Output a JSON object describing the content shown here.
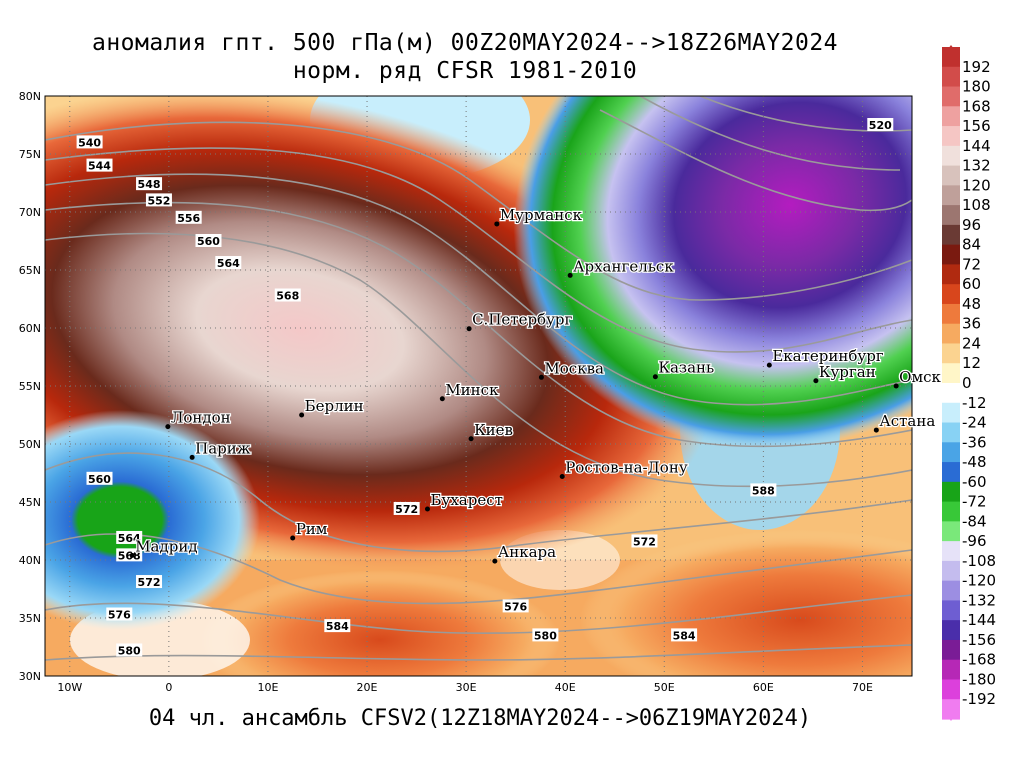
{
  "title_line1": "аномалия гпт. 500 гПа(м) 00Z20MAY2024-->18Z26MAY2024",
  "title_line2": "норм. ряд CFSR 1981-2010",
  "footer": "04 чл. ансамбль CFSV2(12Z18MAY2024-->06Z19MAY2024)",
  "lat_labels": [
    "80N",
    "75N",
    "70N",
    "65N",
    "60N",
    "55N",
    "50N",
    "45N",
    "40N",
    "35N",
    "30N"
  ],
  "lon_labels": [
    "10W",
    "0",
    "10E",
    "20E",
    "30E",
    "40E",
    "50E",
    "60E",
    "70E"
  ],
  "cities": [
    {
      "name": "Мурманск",
      "lon": 33.1,
      "lat": 68.97
    },
    {
      "name": "Архангельск",
      "lon": 40.5,
      "lat": 64.54
    },
    {
      "name": "С.Петербург",
      "lon": 30.3,
      "lat": 59.94
    },
    {
      "name": "Москва",
      "lon": 37.6,
      "lat": 55.75
    },
    {
      "name": "Минск",
      "lon": 27.6,
      "lat": 53.9
    },
    {
      "name": "Казань",
      "lon": 49.1,
      "lat": 55.8
    },
    {
      "name": "Екатеринбург",
      "lon": 60.6,
      "lat": 56.8
    },
    {
      "name": "Курган",
      "lon": 65.3,
      "lat": 55.45
    },
    {
      "name": "Омск",
      "lon": 73.4,
      "lat": 55.0
    },
    {
      "name": "Астана",
      "lon": 71.4,
      "lat": 51.2
    },
    {
      "name": "Берлин",
      "lon": 13.4,
      "lat": 52.5
    },
    {
      "name": "Лондон",
      "lon": -0.1,
      "lat": 51.5
    },
    {
      "name": "Париж",
      "lon": 2.35,
      "lat": 48.85
    },
    {
      "name": "Киев",
      "lon": 30.5,
      "lat": 50.45
    },
    {
      "name": "Ростов-на-Дону",
      "lon": 39.7,
      "lat": 47.2
    },
    {
      "name": "Бухарест",
      "lon": 26.1,
      "lat": 44.4
    },
    {
      "name": "Рим",
      "lon": 12.5,
      "lat": 41.9
    },
    {
      "name": "Мадрид",
      "lon": -3.7,
      "lat": 40.4
    },
    {
      "name": "Анкара",
      "lon": 32.9,
      "lat": 39.9
    }
  ],
  "contour_labels": [
    {
      "text": "540",
      "lon": -8.0,
      "lat": 76.0
    },
    {
      "text": "544",
      "lon": -7.0,
      "lat": 74.0
    },
    {
      "text": "548",
      "lon": -2.0,
      "lat": 72.4
    },
    {
      "text": "552",
      "lon": -1.0,
      "lat": 71.0
    },
    {
      "text": "556",
      "lon": 2.0,
      "lat": 69.5
    },
    {
      "text": "560",
      "lon": 4.0,
      "lat": 67.5
    },
    {
      "text": "564",
      "lon": 6.0,
      "lat": 65.6
    },
    {
      "text": "568",
      "lon": 12.0,
      "lat": 62.8
    },
    {
      "text": "520",
      "lon": 71.8,
      "lat": 77.5
    },
    {
      "text": "560",
      "lon": -7.0,
      "lat": 47.0
    },
    {
      "text": "564",
      "lon": -4.0,
      "lat": 41.9
    },
    {
      "text": "568",
      "lon": -4.0,
      "lat": 40.4
    },
    {
      "text": "572",
      "lon": -2.0,
      "lat": 38.1
    },
    {
      "text": "576",
      "lon": -5.0,
      "lat": 35.3
    },
    {
      "text": "580",
      "lon": -4.0,
      "lat": 32.2
    },
    {
      "text": "572",
      "lon": 24.0,
      "lat": 44.4
    },
    {
      "text": "572",
      "lon": 48.0,
      "lat": 41.6
    },
    {
      "text": "576",
      "lon": 35.0,
      "lat": 36.0
    },
    {
      "text": "580",
      "lon": 38.0,
      "lat": 33.5
    },
    {
      "text": "584",
      "lon": 17.0,
      "lat": 34.3
    },
    {
      "text": "584",
      "lon": 52.0,
      "lat": 33.5
    },
    {
      "text": "588",
      "lon": 60.0,
      "lat": 46.0
    }
  ],
  "colorbar": {
    "labels": [
      "192",
      "180",
      "168",
      "156",
      "144",
      "132",
      "120",
      "108",
      "96",
      "84",
      "72",
      "60",
      "48",
      "36",
      "24",
      "12",
      "0",
      "-12",
      "-24",
      "-36",
      "-48",
      "-60",
      "-72",
      "-84",
      "-96",
      "-108",
      "-120",
      "-132",
      "-144",
      "-156",
      "-168",
      "-180",
      "-192"
    ],
    "colors": [
      "#c0302e",
      "#d24c4a",
      "#e06c6a",
      "#eea1a0",
      "#f5c6c4",
      "#f0e0dc",
      "#d8c2bc",
      "#bfa09a",
      "#9c7670",
      "#6a3a34",
      "#7a1a10",
      "#b02a10",
      "#d8461c",
      "#ee7a3c",
      "#f6aa60",
      "#fbd390",
      "#fff6c8",
      "#ffffff",
      "#c8eefc",
      "#88d2f4",
      "#4aa4e6",
      "#2a6cd4",
      "#18a418",
      "#38c838",
      "#7ae87a",
      "#e6e2f8",
      "#c4bcee",
      "#9c8ee2",
      "#6e5ed2",
      "#4a2eaa",
      "#7a1c96",
      "#b628b6",
      "#dc40dc",
      "#f07cf0"
    ]
  }
}
